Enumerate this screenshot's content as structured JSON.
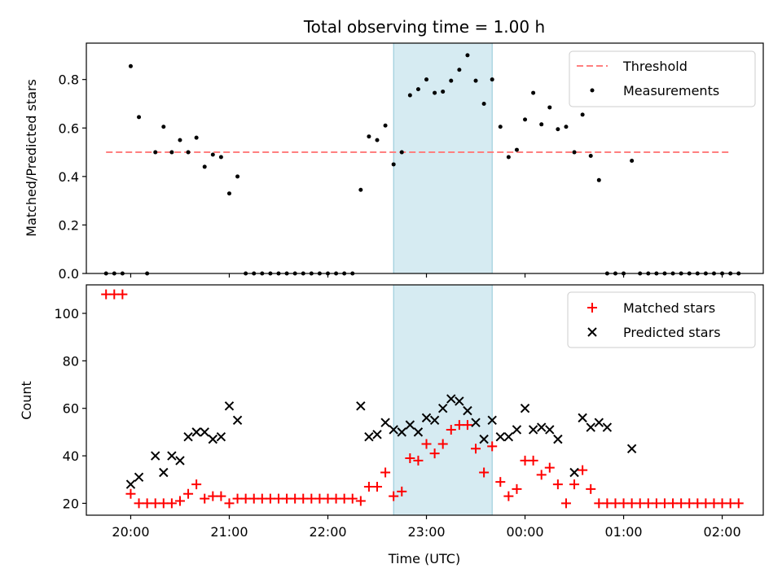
{
  "chart_data": [
    {
      "type": "scatter",
      "title": "Total observing time = 1.00 h",
      "ylabel": "Matched/Predicted stars",
      "xlabel": "",
      "x_unit": "hours after 19:45 UTC (same time axis as lower panel)",
      "xlim_time": [
        "19:33",
        "02:25"
      ],
      "ylim": [
        0,
        0.95
      ],
      "yticks": [
        "0.0",
        "0.2",
        "0.4",
        "0.6",
        "0.8"
      ],
      "yticks_values": [
        0,
        0.2,
        0.4,
        0.6,
        0.8
      ],
      "shaded_interval": [
        "22:40",
        "23:40"
      ],
      "legend": {
        "location": "upper right",
        "entries": [
          {
            "label": "Threshold",
            "marker": "dashed-line",
            "color": "#ff7f7f"
          },
          {
            "label": "Measurements",
            "marker": "dot",
            "color": "#000000"
          }
        ]
      },
      "series": [
        {
          "name": "Threshold",
          "style": "dashed",
          "color": "#ff7f7f",
          "x": [
            "19:45",
            "02:05"
          ],
          "y": [
            0.5,
            0.5
          ]
        },
        {
          "name": "Measurements",
          "style": "dot",
          "color": "#000000",
          "points": [
            [
              "19:45",
              0.0
            ],
            [
              "19:50",
              0.0
            ],
            [
              "19:55",
              0.0
            ],
            [
              "20:00",
              0.855
            ],
            [
              "20:05",
              0.645
            ],
            [
              "20:10",
              0.0
            ],
            [
              "20:15",
              0.5
            ],
            [
              "20:20",
              0.605
            ],
            [
              "20:25",
              0.5
            ],
            [
              "20:30",
              0.55
            ],
            [
              "20:35",
              0.5
            ],
            [
              "20:40",
              0.56
            ],
            [
              "20:45",
              0.44
            ],
            [
              "20:50",
              0.49
            ],
            [
              "20:55",
              0.48
            ],
            [
              "21:00",
              0.33
            ],
            [
              "21:05",
              0.4
            ],
            [
              "21:10",
              0.0
            ],
            [
              "21:15",
              0.0
            ],
            [
              "21:20",
              0.0
            ],
            [
              "21:25",
              0.0
            ],
            [
              "21:30",
              0.0
            ],
            [
              "21:35",
              0.0
            ],
            [
              "21:40",
              0.0
            ],
            [
              "21:45",
              0.0
            ],
            [
              "21:50",
              0.0
            ],
            [
              "21:55",
              0.0
            ],
            [
              "22:00",
              0.0
            ],
            [
              "22:05",
              0.0
            ],
            [
              "22:10",
              0.0
            ],
            [
              "22:15",
              0.0
            ],
            [
              "22:20",
              0.345
            ],
            [
              "22:25",
              0.565
            ],
            [
              "22:30",
              0.55
            ],
            [
              "22:35",
              0.61
            ],
            [
              "22:40",
              0.45
            ],
            [
              "22:45",
              0.5
            ],
            [
              "22:50",
              0.735
            ],
            [
              "22:55",
              0.76
            ],
            [
              "23:00",
              0.8
            ],
            [
              "23:05",
              0.745
            ],
            [
              "23:10",
              0.75
            ],
            [
              "23:15",
              0.795
            ],
            [
              "23:20",
              0.84
            ],
            [
              "23:25",
              0.9
            ],
            [
              "23:30",
              0.795
            ],
            [
              "23:35",
              0.7
            ],
            [
              "23:40",
              0.8
            ],
            [
              "23:45",
              0.605
            ],
            [
              "23:50",
              0.48
            ],
            [
              "23:55",
              0.51
            ],
            [
              "00:00",
              0.635
            ],
            [
              "00:05",
              0.745
            ],
            [
              "00:10",
              0.615
            ],
            [
              "00:15",
              0.685
            ],
            [
              "00:20",
              0.595
            ],
            [
              "00:25",
              0.605
            ],
            [
              "00:30",
              0.5
            ],
            [
              "00:35",
              0.655
            ],
            [
              "00:40",
              0.485
            ],
            [
              "00:45",
              0.385
            ],
            [
              "00:50",
              0.0
            ],
            [
              "00:55",
              0.0
            ],
            [
              "01:00",
              0.0
            ],
            [
              "01:05",
              0.465
            ],
            [
              "01:10",
              0.0
            ],
            [
              "01:15",
              0.0
            ],
            [
              "01:20",
              0.0
            ],
            [
              "01:25",
              0.0
            ],
            [
              "01:30",
              0.0
            ],
            [
              "01:35",
              0.0
            ],
            [
              "01:40",
              0.0
            ],
            [
              "01:45",
              0.0
            ],
            [
              "01:50",
              0.0
            ],
            [
              "01:55",
              0.0
            ],
            [
              "02:00",
              0.0
            ],
            [
              "02:05",
              0.0
            ],
            [
              "02:10",
              0.0
            ]
          ]
        }
      ]
    },
    {
      "type": "scatter",
      "title": "",
      "ylabel": "Count",
      "xlabel": "Time (UTC)",
      "xticks": [
        "20:00",
        "21:00",
        "22:00",
        "23:00",
        "00:00",
        "01:00",
        "02:00"
      ],
      "xlim_time": [
        "19:33",
        "02:25"
      ],
      "ylim": [
        15,
        112
      ],
      "yticks": [
        "20",
        "40",
        "60",
        "80",
        "100"
      ],
      "yticks_values": [
        20,
        40,
        60,
        80,
        100
      ],
      "shaded_interval": [
        "22:40",
        "23:40"
      ],
      "legend": {
        "location": "upper right",
        "entries": [
          {
            "label": "Matched stars",
            "marker": "plus",
            "color": "#ff0000"
          },
          {
            "label": "Predicted stars",
            "marker": "cross",
            "color": "#000000"
          }
        ]
      },
      "series": [
        {
          "name": "Matched stars",
          "marker": "plus",
          "color": "#ff0000",
          "points": [
            [
              "19:45",
              108
            ],
            [
              "19:50",
              108
            ],
            [
              "19:55",
              108
            ],
            [
              "20:00",
              24
            ],
            [
              "20:05",
              20
            ],
            [
              "20:10",
              20
            ],
            [
              "20:15",
              20
            ],
            [
              "20:20",
              20
            ],
            [
              "20:25",
              20
            ],
            [
              "20:30",
              21
            ],
            [
              "20:35",
              24
            ],
            [
              "20:40",
              28
            ],
            [
              "20:45",
              22
            ],
            [
              "20:50",
              23
            ],
            [
              "20:55",
              23
            ],
            [
              "21:00",
              20
            ],
            [
              "21:05",
              22
            ],
            [
              "21:10",
              22
            ],
            [
              "21:15",
              22
            ],
            [
              "21:20",
              22
            ],
            [
              "21:25",
              22
            ],
            [
              "21:30",
              22
            ],
            [
              "21:35",
              22
            ],
            [
              "21:40",
              22
            ],
            [
              "21:45",
              22
            ],
            [
              "21:50",
              22
            ],
            [
              "21:55",
              22
            ],
            [
              "22:00",
              22
            ],
            [
              "22:05",
              22
            ],
            [
              "22:10",
              22
            ],
            [
              "22:15",
              22
            ],
            [
              "22:20",
              21
            ],
            [
              "22:25",
              27
            ],
            [
              "22:30",
              27
            ],
            [
              "22:35",
              33
            ],
            [
              "22:40",
              23
            ],
            [
              "22:45",
              25
            ],
            [
              "22:50",
              39
            ],
            [
              "22:55",
              38
            ],
            [
              "23:00",
              45
            ],
            [
              "23:05",
              41
            ],
            [
              "23:10",
              45
            ],
            [
              "23:15",
              51
            ],
            [
              "23:20",
              53
            ],
            [
              "23:25",
              53
            ],
            [
              "23:30",
              43
            ],
            [
              "23:35",
              33
            ],
            [
              "23:40",
              44
            ],
            [
              "23:45",
              29
            ],
            [
              "23:50",
              23
            ],
            [
              "23:55",
              26
            ],
            [
              "00:00",
              38
            ],
            [
              "00:05",
              38
            ],
            [
              "00:10",
              32
            ],
            [
              "00:15",
              35
            ],
            [
              "00:20",
              28
            ],
            [
              "00:25",
              20
            ],
            [
              "00:30",
              28
            ],
            [
              "00:35",
              34
            ],
            [
              "00:40",
              26
            ],
            [
              "00:45",
              20
            ],
            [
              "00:50",
              20
            ],
            [
              "00:55",
              20
            ],
            [
              "01:00",
              20
            ],
            [
              "01:05",
              20
            ],
            [
              "01:10",
              20
            ],
            [
              "01:15",
              20
            ],
            [
              "01:20",
              20
            ],
            [
              "01:25",
              20
            ],
            [
              "01:30",
              20
            ],
            [
              "01:35",
              20
            ],
            [
              "01:40",
              20
            ],
            [
              "01:45",
              20
            ],
            [
              "01:50",
              20
            ],
            [
              "01:55",
              20
            ],
            [
              "02:00",
              20
            ],
            [
              "02:05",
              20
            ],
            [
              "02:10",
              20
            ]
          ]
        },
        {
          "name": "Predicted stars",
          "marker": "cross",
          "color": "#000000",
          "points": [
            [
              "20:00",
              28
            ],
            [
              "20:05",
              31
            ],
            [
              "20:15",
              40
            ],
            [
              "20:20",
              33
            ],
            [
              "20:25",
              40
            ],
            [
              "20:30",
              38
            ],
            [
              "20:35",
              48
            ],
            [
              "20:40",
              50
            ],
            [
              "20:45",
              50
            ],
            [
              "20:50",
              47
            ],
            [
              "20:55",
              48
            ],
            [
              "21:00",
              61
            ],
            [
              "21:05",
              55
            ],
            [
              "22:20",
              61
            ],
            [
              "22:25",
              48
            ],
            [
              "22:30",
              49
            ],
            [
              "22:35",
              54
            ],
            [
              "22:40",
              51
            ],
            [
              "22:45",
              50
            ],
            [
              "22:50",
              53
            ],
            [
              "22:55",
              50
            ],
            [
              "23:00",
              56
            ],
            [
              "23:05",
              55
            ],
            [
              "23:10",
              60
            ],
            [
              "23:15",
              64
            ],
            [
              "23:20",
              63
            ],
            [
              "23:25",
              59
            ],
            [
              "23:30",
              54
            ],
            [
              "23:35",
              47
            ],
            [
              "23:40",
              55
            ],
            [
              "23:45",
              48
            ],
            [
              "23:50",
              48
            ],
            [
              "23:55",
              51
            ],
            [
              "00:00",
              60
            ],
            [
              "00:05",
              51
            ],
            [
              "00:10",
              52
            ],
            [
              "00:15",
              51
            ],
            [
              "00:20",
              47
            ],
            [
              "00:30",
              33
            ],
            [
              "00:35",
              56
            ],
            [
              "00:40",
              52
            ],
            [
              "00:45",
              54
            ],
            [
              "00:50",
              52
            ],
            [
              "01:05",
              43
            ]
          ]
        }
      ]
    }
  ]
}
